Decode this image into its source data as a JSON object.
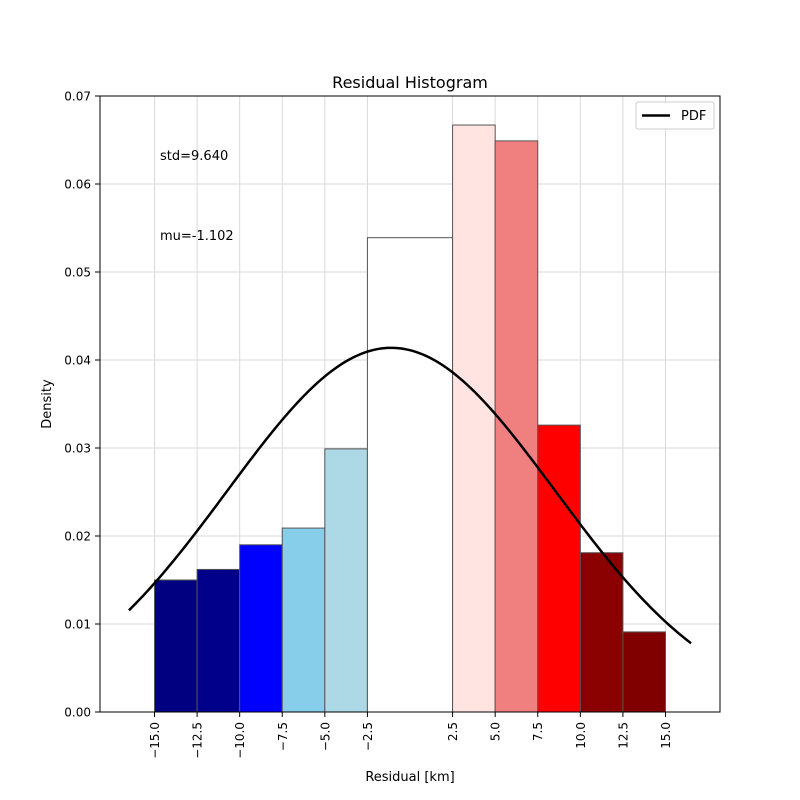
{
  "chart_data": {
    "type": "bar",
    "title": "Residual Histogram",
    "xlabel": "Residual [km]",
    "ylabel": "Density",
    "xlim": [
      -18.2,
      18.2
    ],
    "ylim": [
      0,
      0.07
    ],
    "grid": true,
    "legend_position": "top-right",
    "legend": [
      {
        "name": "PDF",
        "color": "#000000"
      }
    ],
    "annotations": [
      "std=9.640",
      "mu=-1.102"
    ],
    "x_ticks": [
      -15.0,
      -12.5,
      -10.0,
      -7.5,
      -5.0,
      -2.5,
      2.5,
      5.0,
      7.5,
      10.0,
      12.5,
      15.0
    ],
    "x_tick_labels": [
      "−15.0",
      "−12.5",
      "−10.0",
      "−7.5",
      "−5.0",
      "−2.5",
      "2.5",
      "5.0",
      "7.5",
      "10.0",
      "12.5",
      "15.0"
    ],
    "y_ticks": [
      0.0,
      0.01,
      0.02,
      0.03,
      0.04,
      0.05,
      0.06,
      0.07
    ],
    "y_tick_labels": [
      "0.00",
      "0.01",
      "0.02",
      "0.03",
      "0.04",
      "0.05",
      "0.06",
      "0.07"
    ],
    "bars": [
      {
        "x0": -15.0,
        "x1": -12.5,
        "value": 0.015,
        "color": "#000080"
      },
      {
        "x0": -12.5,
        "x1": -10.0,
        "value": 0.0162,
        "color": "#00008b"
      },
      {
        "x0": -10.0,
        "x1": -7.5,
        "value": 0.019,
        "color": "#0000ff"
      },
      {
        "x0": -7.5,
        "x1": -5.0,
        "value": 0.0209,
        "color": "#87ceeb"
      },
      {
        "x0": -5.0,
        "x1": -2.5,
        "value": 0.0299,
        "color": "#add8e6"
      },
      {
        "x0": -2.5,
        "x1": 2.5,
        "value": 0.0539,
        "color": "#ffffff"
      },
      {
        "x0": 2.5,
        "x1": 5.0,
        "value": 0.0667,
        "color": "#ffe4e1"
      },
      {
        "x0": 5.0,
        "x1": 7.5,
        "value": 0.0649,
        "color": "#f08080"
      },
      {
        "x0": 7.5,
        "x1": 10.0,
        "value": 0.0326,
        "color": "#ff0000"
      },
      {
        "x0": 10.0,
        "x1": 12.5,
        "value": 0.0181,
        "color": "#8b0000"
      },
      {
        "x0": 12.5,
        "x1": 15.0,
        "value": 0.0091,
        "color": "#800000"
      }
    ],
    "series": [
      {
        "name": "PDF",
        "type": "line",
        "mu": -1.102,
        "std": 9.64,
        "x_range": [
          -16.5,
          16.5
        ],
        "color": "#000000"
      }
    ]
  }
}
